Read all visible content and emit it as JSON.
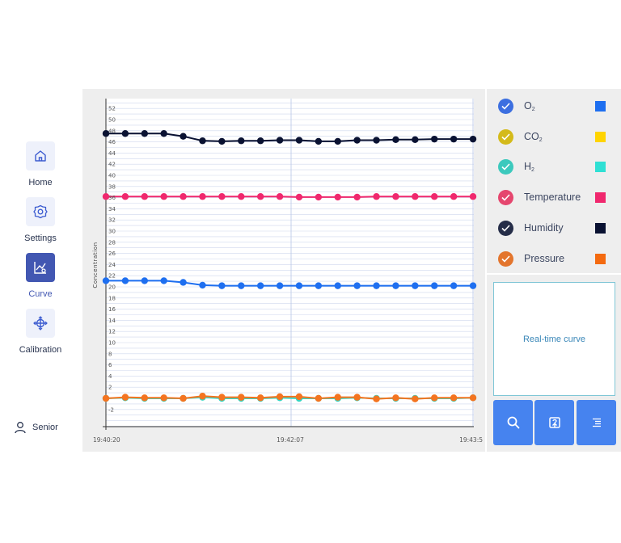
{
  "nav": {
    "items": [
      {
        "label": "Home",
        "icon": "home-icon"
      },
      {
        "label": "Settings",
        "icon": "gear-icon"
      },
      {
        "label": "Curve",
        "icon": "curve-icon"
      },
      {
        "label": "Calibration",
        "icon": "calibration-icon"
      }
    ],
    "active": "Curve",
    "user_label": "Senior"
  },
  "chart_data": {
    "type": "line",
    "ylabel": "Concentration",
    "ylim": [
      -4,
      52
    ],
    "yticks": [
      -2,
      2,
      4,
      6,
      8,
      10,
      12,
      14,
      16,
      18,
      20,
      22,
      24,
      26,
      28,
      30,
      32,
      34,
      36,
      38,
      40,
      42,
      44,
      46,
      48,
      50,
      52
    ],
    "ytick_labels": [
      "-2",
      "2",
      "4",
      "6",
      "8",
      "10",
      "12",
      "14",
      "16",
      "18",
      "20",
      "22",
      "24",
      "26",
      "28",
      "30",
      "32",
      "34",
      "36",
      "38",
      "40",
      "42",
      "44",
      "46",
      "48",
      "50",
      "52"
    ],
    "x_tick_labels": [
      "19:40:20",
      "19:42:07",
      "19:43:5"
    ],
    "grid": true,
    "series": [
      {
        "name": "Humidity",
        "color": "#0a1232",
        "values": [
          47.5,
          47.5,
          47.5,
          47.5,
          47,
          46.2,
          46.1,
          46.2,
          46.2,
          46.3,
          46.3,
          46.1,
          46.1,
          46.3,
          46.3,
          46.4,
          46.4,
          46.5,
          46.5,
          46.5
        ]
      },
      {
        "name": "Temperature",
        "color": "#f0286e",
        "values": [
          36.2,
          36.2,
          36.2,
          36.2,
          36.2,
          36.2,
          36.2,
          36.2,
          36.2,
          36.2,
          36.1,
          36.1,
          36.1,
          36.1,
          36.2,
          36.2,
          36.2,
          36.2,
          36.2,
          36.2
        ]
      },
      {
        "name": "O2",
        "color": "#1e6ff0",
        "values": [
          21.1,
          21.1,
          21.1,
          21.1,
          20.8,
          20.3,
          20.2,
          20.2,
          20.2,
          20.2,
          20.2,
          20.2,
          20.2,
          20.2,
          20.2,
          20.2,
          20.2,
          20.2,
          20.2,
          20.2
        ]
      },
      {
        "name": "H2",
        "color": "#36d4c0",
        "values": [
          0,
          0.1,
          0,
          0,
          0,
          0.2,
          0,
          0,
          0,
          0.1,
          0,
          0,
          0,
          0.1,
          0,
          0,
          0,
          0,
          0,
          0.1
        ]
      },
      {
        "name": "Pressure",
        "color": "#f47420",
        "values": [
          0,
          0.2,
          0.1,
          0.1,
          0,
          0.4,
          0.2,
          0.2,
          0.1,
          0.3,
          0.3,
          0,
          0.2,
          0.2,
          -0.1,
          0.1,
          -0.1,
          0.1,
          0.1,
          0.1
        ]
      }
    ]
  },
  "legend": [
    {
      "base": "O",
      "sub": "2",
      "color": "#1e6ff0"
    },
    {
      "base": "CO",
      "sub": "2",
      "color": "#ffd400"
    },
    {
      "base": "H",
      "sub": "2",
      "color": "#2fe0d4"
    },
    {
      "base": "Temperature",
      "sub": "",
      "color": "#f0286e"
    },
    {
      "base": "Humidity",
      "sub": "",
      "color": "#0a1232"
    },
    {
      "base": "Pressure",
      "sub": "",
      "color": "#f46a10"
    }
  ],
  "legend_check_colors": [
    "#3c6fe0",
    "#d4ba1a",
    "#3cc9bd",
    "#e5466e",
    "#252d48",
    "#e3752d"
  ],
  "info_text": "Real-time curve",
  "actions": [
    {
      "icon": "search-icon"
    },
    {
      "icon": "export-icon"
    },
    {
      "icon": "menu-icon"
    }
  ]
}
